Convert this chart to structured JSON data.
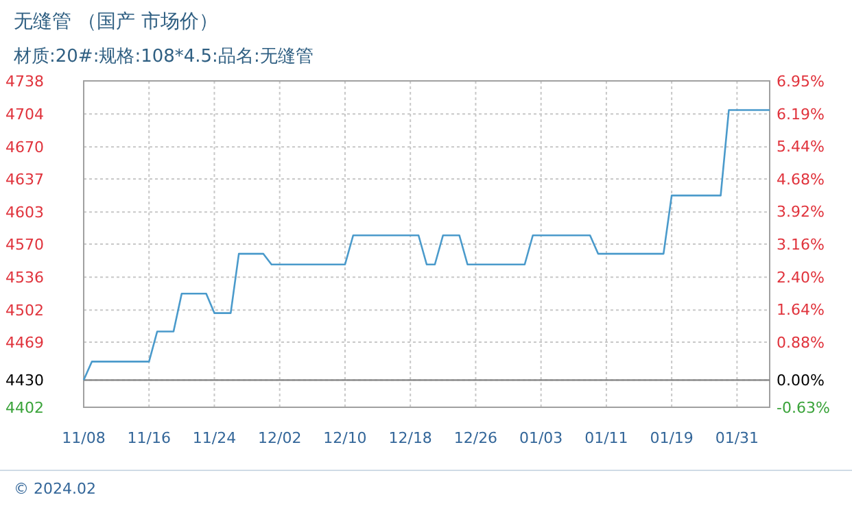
{
  "chart_data": {
    "type": "line",
    "title": "无缝管 （国产 市场价）",
    "subtitle": "材质:20#:规格:108*4.5:品名:无缝管",
    "categories": [
      "11/08",
      null,
      null,
      null,
      null,
      null,
      null,
      null,
      "11/16",
      null,
      null,
      null,
      null,
      null,
      null,
      null,
      "11/24",
      null,
      null,
      null,
      null,
      null,
      null,
      null,
      "12/02",
      null,
      null,
      null,
      null,
      null,
      null,
      null,
      "12/10",
      null,
      null,
      null,
      null,
      null,
      null,
      null,
      "12/18",
      null,
      null,
      null,
      null,
      null,
      null,
      null,
      "12/26",
      null,
      null,
      null,
      null,
      null,
      null,
      null,
      "01/03",
      null,
      null,
      null,
      null,
      null,
      null,
      null,
      "01/11",
      null,
      null,
      null,
      null,
      null,
      null,
      null,
      "01/19",
      null,
      null,
      null,
      null,
      null,
      null,
      null,
      "01/31",
      null,
      null,
      null,
      null
    ],
    "series": [
      {
        "color": "#4a9acb",
        "values": [
          4430,
          4449,
          4449,
          4449,
          4449,
          4449,
          4449,
          4449,
          4449,
          4480,
          4480,
          4480,
          4519,
          4519,
          4519,
          4519,
          4499,
          4499,
          4499,
          4560,
          4560,
          4560,
          4560,
          4549,
          4549,
          4549,
          4549,
          4549,
          4549,
          4549,
          4549,
          4549,
          4549,
          4579,
          4579,
          4579,
          4579,
          4579,
          4579,
          4579,
          4579,
          4579,
          4549,
          4549,
          4579,
          4579,
          4579,
          4549,
          4549,
          4549,
          4549,
          4549,
          4549,
          4549,
          4549,
          4579,
          4579,
          4579,
          4579,
          4579,
          4579,
          4579,
          4579,
          4560,
          4560,
          4560,
          4560,
          4560,
          4560,
          4560,
          4560,
          4560,
          4620,
          4620,
          4620,
          4620,
          4620,
          4620,
          4620,
          4708,
          4708,
          4708,
          4708,
          4708,
          4708
        ]
      }
    ],
    "ylim": [
      4402,
      4738
    ],
    "yticks": [
      4402,
      4430,
      4469,
      4502,
      4536,
      4570,
      4603,
      4637,
      4670,
      4704,
      4738
    ],
    "y2lim": [
      -0.63,
      6.95
    ],
    "y2ticks": [
      {
        "value": -0.63,
        "label": "-0.63%"
      },
      {
        "value": 0,
        "label": "0.00%"
      },
      {
        "value": 0.88,
        "label": "0.88%"
      },
      {
        "value": 1.64,
        "label": "1.64%"
      },
      {
        "value": 2.4,
        "label": "2.40%"
      },
      {
        "value": 3.16,
        "label": "3.16%"
      },
      {
        "value": 3.92,
        "label": "3.92%"
      },
      {
        "value": 4.68,
        "label": "4.68%"
      },
      {
        "value": 5.44,
        "label": "5.44%"
      },
      {
        "value": 6.19,
        "label": "6.19%"
      },
      {
        "value": 6.95,
        "label": "6.95%"
      }
    ],
    "ref_lines": [
      {
        "axis": "y",
        "value": 4430,
        "color": "#808080"
      }
    ],
    "grid": true,
    "marker": "none",
    "line_style": "solid",
    "annotations": [
      "© 2024.02"
    ]
  }
}
